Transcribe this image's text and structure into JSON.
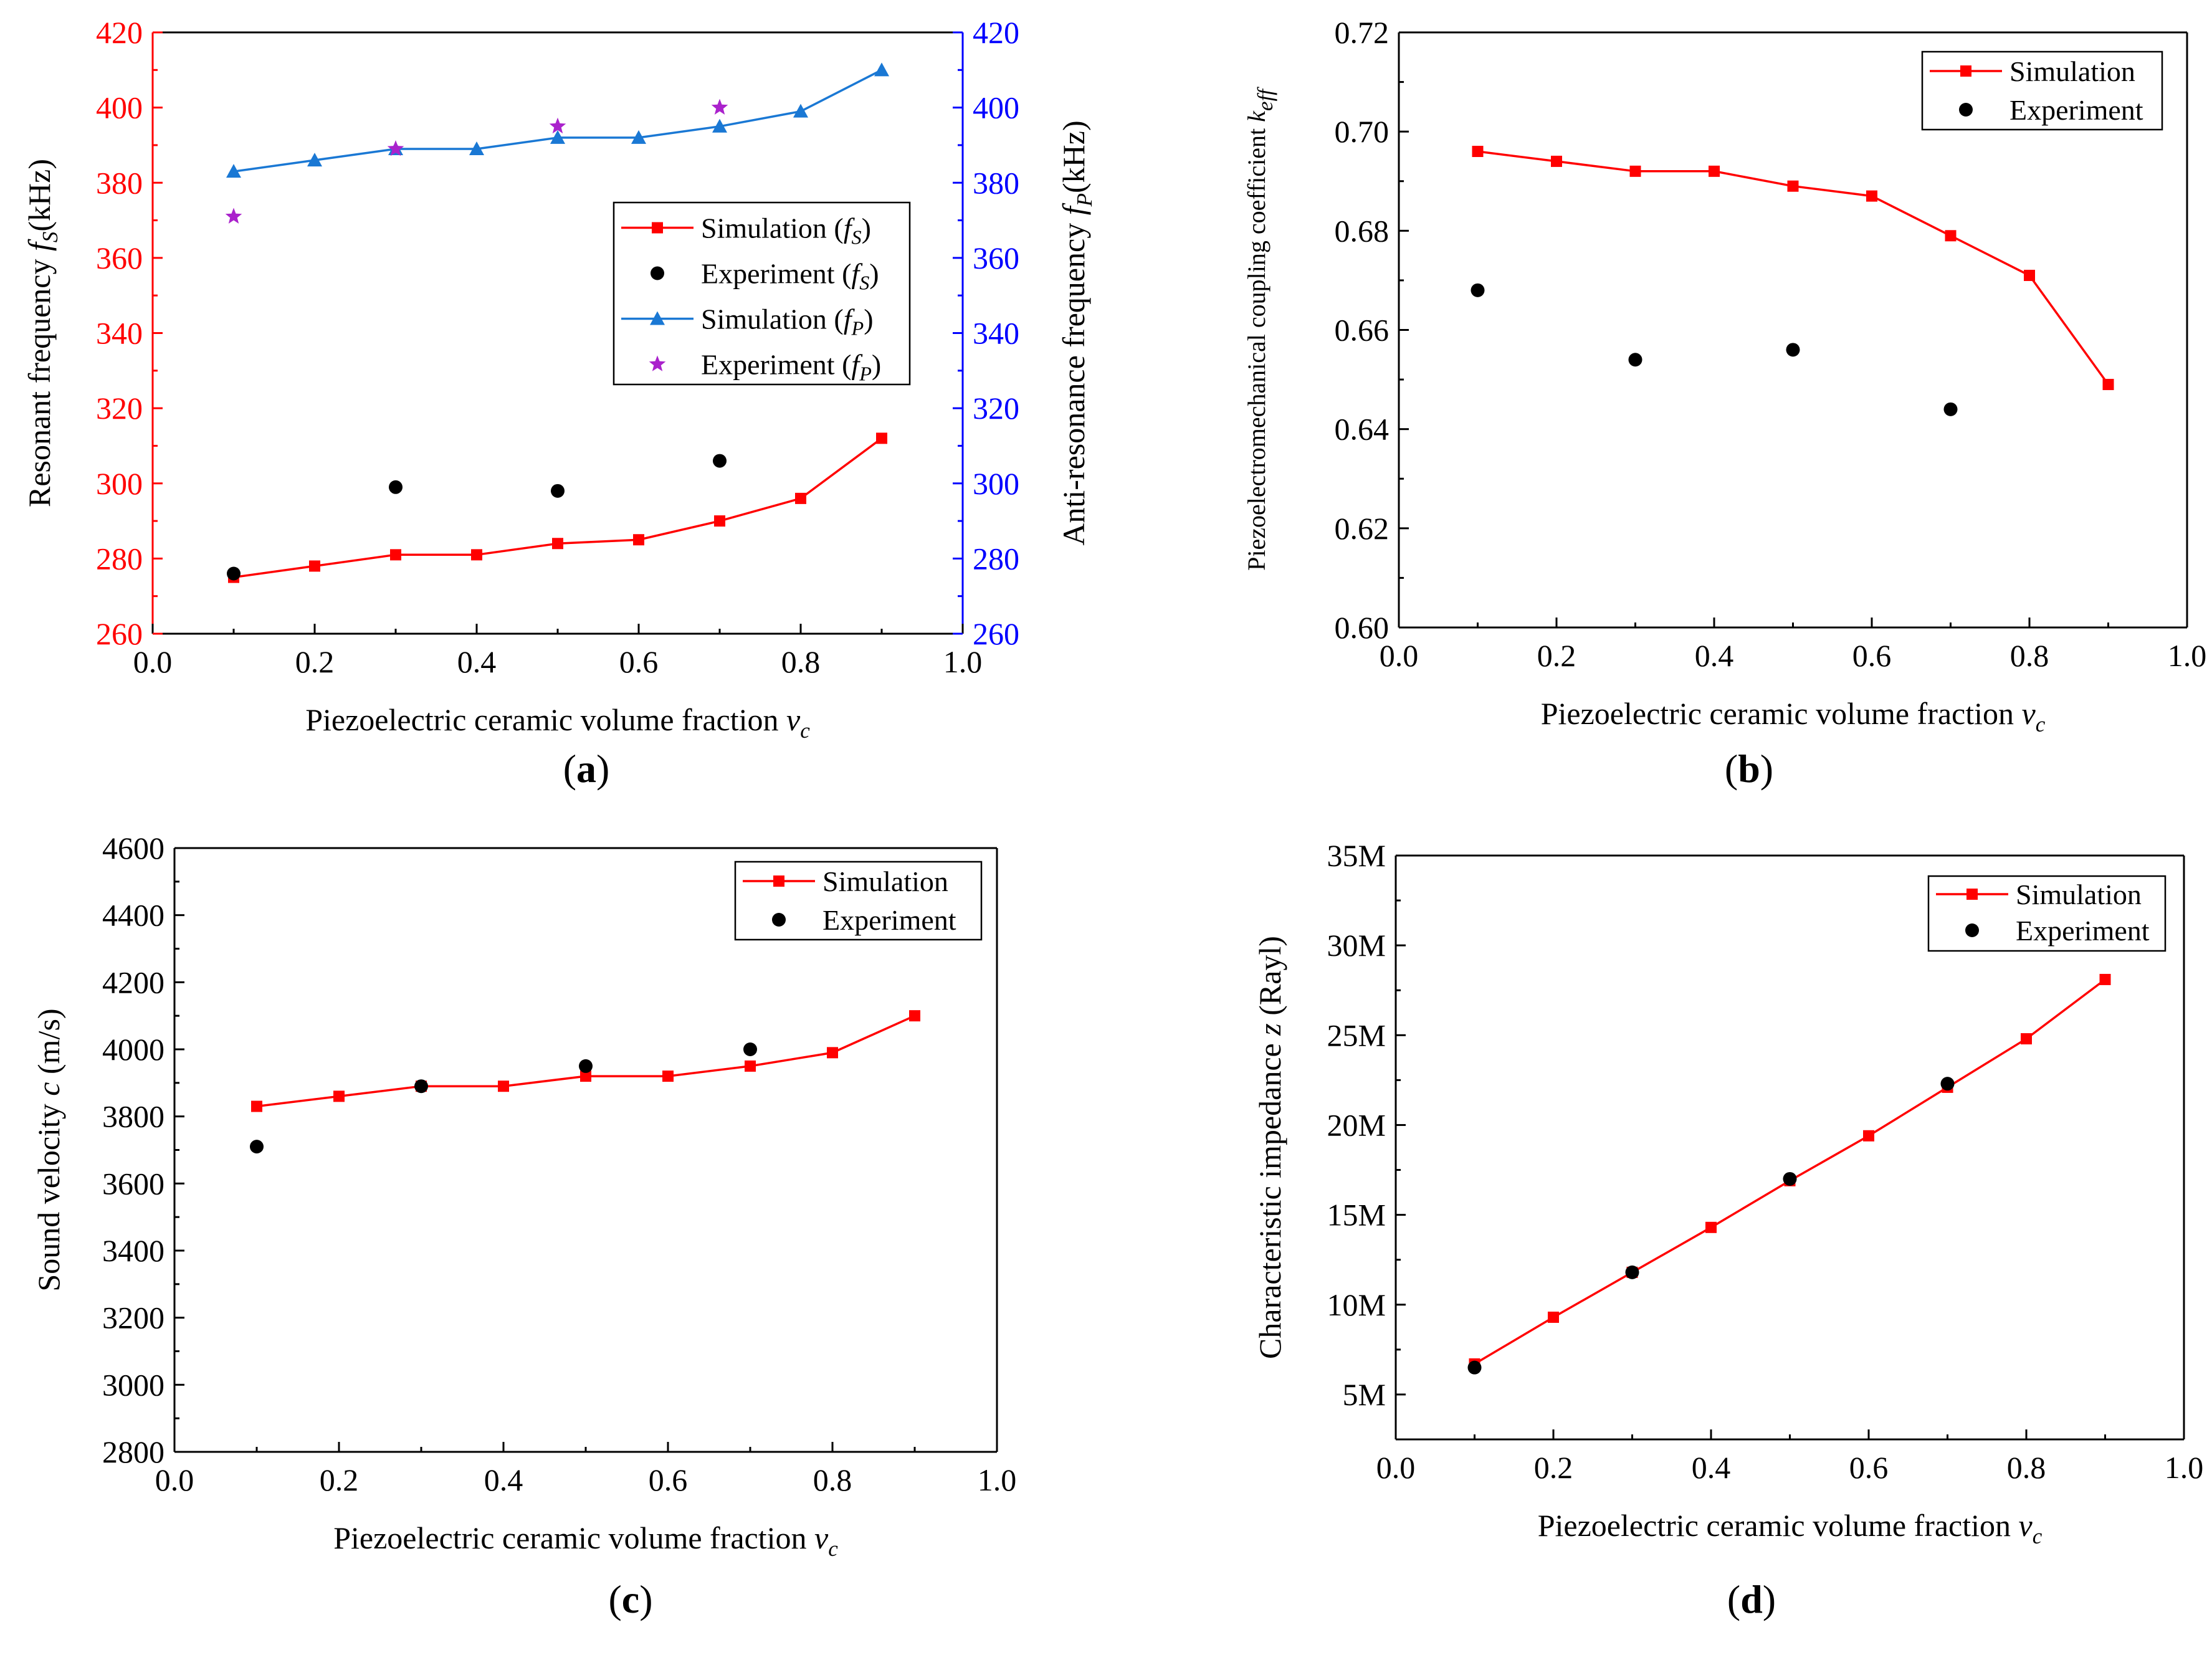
{
  "colors": {
    "sim": "#ff0000",
    "exp": "#000000",
    "sim_fp": "#1a78d4",
    "exp_fp": "#aa22cc",
    "axis_left_a": "#ff0000",
    "axis_right_a": "#0000ff"
  },
  "chart_data": [
    {
      "panel": "(a)",
      "type": "line",
      "xlabel": "Piezoelectric ceramic volume fraction",
      "xlabel_sym": "v",
      "xlabel_sub": "c",
      "ylabel": "Resonant frequency",
      "ylabel_sym": "f",
      "ylabel_sub": "S",
      "ylabel_unit": "(kHz)",
      "y2label": "Anti-resonance frequency",
      "y2label_sym": "f",
      "y2label_sub": "P",
      "y2label_unit": "(kHz)",
      "xlim": [
        0.0,
        1.0
      ],
      "ylim": [
        260,
        420
      ],
      "y2lim": [
        260,
        420
      ],
      "xticks": [
        "0.0",
        "0.2",
        "0.4",
        "0.6",
        "0.8",
        "1.0"
      ],
      "yticks": [
        "260",
        "280",
        "300",
        "320",
        "340",
        "360",
        "380",
        "400",
        "420"
      ],
      "legend_position": "center-right",
      "series": [
        {
          "name": "Simulation",
          "sub": "S",
          "kind": "line-square",
          "color": "#ff0000",
          "axis": "left",
          "x": [
            0.1,
            0.2,
            0.3,
            0.4,
            0.5,
            0.6,
            0.7,
            0.8,
            0.9
          ],
          "y": [
            275,
            278,
            281,
            281,
            284,
            285,
            290,
            296,
            312
          ]
        },
        {
          "name": "Experiment",
          "sub": "S",
          "kind": "dot",
          "color": "#000000",
          "axis": "left",
          "x": [
            0.1,
            0.3,
            0.5,
            0.7
          ],
          "y": [
            276,
            299,
            298,
            306
          ]
        },
        {
          "name": "Simulation",
          "sub": "P",
          "kind": "line-triangle",
          "color": "#1a78d4",
          "axis": "right",
          "x": [
            0.1,
            0.2,
            0.3,
            0.4,
            0.5,
            0.6,
            0.7,
            0.8,
            0.9
          ],
          "y": [
            383,
            386,
            389,
            389,
            392,
            392,
            395,
            399,
            410
          ]
        },
        {
          "name": "Experiment",
          "sub": "P",
          "kind": "star",
          "color": "#aa22cc",
          "axis": "right",
          "x": [
            0.1,
            0.3,
            0.5,
            0.7
          ],
          "y": [
            371,
            389,
            395,
            400
          ]
        }
      ]
    },
    {
      "panel": "(b)",
      "type": "line",
      "xlabel": "Piezoelectric ceramic volume fraction",
      "xlabel_sym": "v",
      "xlabel_sub": "c",
      "ylabel": "Piezoelectromechanical coupling coefficient",
      "ylabel_sym": "k",
      "ylabel_sub": "eff",
      "ylabel_unit": "",
      "xlim": [
        0.0,
        1.0
      ],
      "ylim": [
        0.6,
        0.72
      ],
      "xticks": [
        "0.0",
        "0.2",
        "0.4",
        "0.6",
        "0.8",
        "1.0"
      ],
      "yticks": [
        "0.60",
        "0.62",
        "0.64",
        "0.66",
        "0.68",
        "0.70",
        "0.72"
      ],
      "legend_position": "top-right",
      "series": [
        {
          "name": "Simulation",
          "kind": "line-square",
          "color": "#ff0000",
          "x": [
            0.1,
            0.2,
            0.3,
            0.4,
            0.5,
            0.6,
            0.7,
            0.8,
            0.9
          ],
          "y": [
            0.696,
            0.694,
            0.692,
            0.692,
            0.689,
            0.687,
            0.679,
            0.671,
            0.649
          ]
        },
        {
          "name": "Experiment",
          "kind": "dot",
          "color": "#000000",
          "x": [
            0.1,
            0.3,
            0.5,
            0.7
          ],
          "y": [
            0.668,
            0.654,
            0.656,
            0.644
          ]
        }
      ]
    },
    {
      "panel": "(c)",
      "type": "line",
      "xlabel": "Piezoelectric ceramic volume fraction",
      "xlabel_sym": "v",
      "xlabel_sub": "c",
      "ylabel": "Sound velocity",
      "ylabel_sym": "c",
      "ylabel_sub": "",
      "ylabel_unit": "(m/s)",
      "xlim": [
        0.0,
        1.0
      ],
      "ylim": [
        2800,
        4600
      ],
      "xticks": [
        "0.0",
        "0.2",
        "0.4",
        "0.6",
        "0.8",
        "1.0"
      ],
      "yticks": [
        "2800",
        "3000",
        "3200",
        "3400",
        "3600",
        "3800",
        "4000",
        "4200",
        "4400",
        "4600"
      ],
      "legend_position": "top-right",
      "series": [
        {
          "name": "Simulation",
          "kind": "line-square",
          "color": "#ff0000",
          "x": [
            0.1,
            0.2,
            0.3,
            0.4,
            0.5,
            0.6,
            0.7,
            0.8,
            0.9
          ],
          "y": [
            3830,
            3860,
            3890,
            3890,
            3920,
            3920,
            3950,
            3990,
            4100
          ]
        },
        {
          "name": "Experiment",
          "kind": "dot",
          "color": "#000000",
          "x": [
            0.1,
            0.3,
            0.5,
            0.7
          ],
          "y": [
            3710,
            3890,
            3950,
            4000
          ]
        }
      ]
    },
    {
      "panel": "(d)",
      "type": "line",
      "xlabel": "Piezoelectric ceramic volume fraction",
      "xlabel_sym": "v",
      "xlabel_sub": "c",
      "ylabel": "Characteristic impedance",
      "ylabel_sym": "z",
      "ylabel_sub": "",
      "ylabel_unit": "(Rayl)",
      "xlim": [
        0.0,
        1.0
      ],
      "ylim": [
        2500000,
        35000000
      ],
      "yticks_values": [
        5000000,
        10000000,
        15000000,
        20000000,
        25000000,
        30000000,
        35000000
      ],
      "xticks": [
        "0.0",
        "0.2",
        "0.4",
        "0.6",
        "0.8",
        "1.0"
      ],
      "yticks": [
        "5M",
        "10M",
        "15M",
        "20M",
        "25M",
        "30M",
        "35M"
      ],
      "legend_position": "top-right",
      "series": [
        {
          "name": "Simulation",
          "kind": "line-square",
          "color": "#ff0000",
          "x": [
            0.1,
            0.2,
            0.3,
            0.4,
            0.5,
            0.6,
            0.7,
            0.8,
            0.9
          ],
          "y": [
            6700000,
            9300000,
            11800000,
            14300000,
            16900000,
            19400000,
            22100000,
            24800000,
            28100000
          ]
        },
        {
          "name": "Experiment",
          "kind": "dot",
          "color": "#000000",
          "x": [
            0.1,
            0.3,
            0.5,
            0.7
          ],
          "y": [
            6500000,
            11800000,
            17000000,
            22300000
          ]
        }
      ]
    }
  ]
}
